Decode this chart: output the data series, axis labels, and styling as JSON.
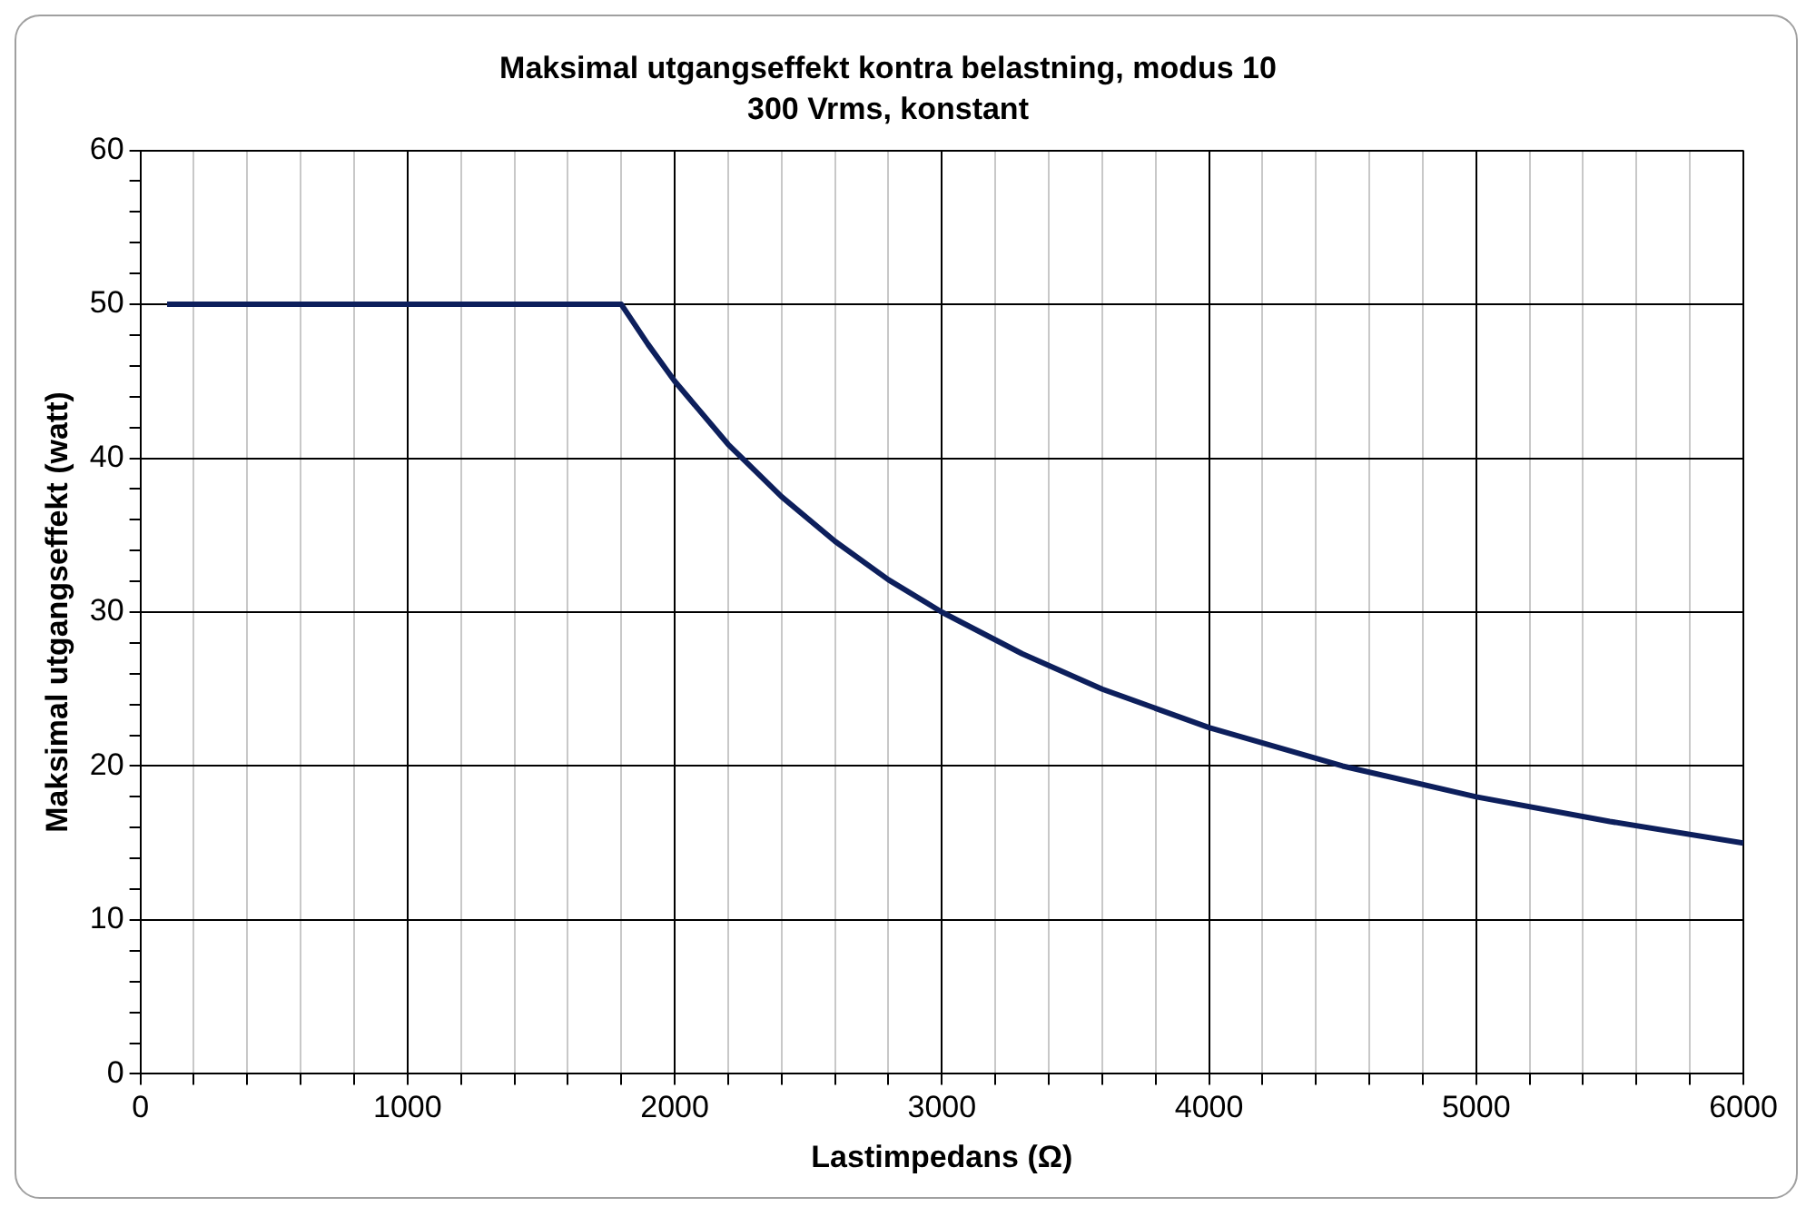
{
  "chart_data": {
    "type": "line",
    "title": "Maksimal utgangseffekt kontra belastning, modus 10",
    "subtitle": "300 Vrms, konstant",
    "xlabel": "Lastimpedans (Ω)",
    "ylabel": "Maksimal utgangseffekt (watt)",
    "x": [
      100,
      1800,
      1900,
      2000,
      2200,
      2400,
      2600,
      2800,
      3000,
      3300,
      3600,
      4000,
      4500,
      5000,
      5500,
      6000
    ],
    "series": [
      {
        "color": "#0d1f5c",
        "values": [
          50,
          50,
          47.4,
          45,
          40.9,
          37.5,
          34.6,
          32.1,
          30,
          27.3,
          25,
          22.5,
          20,
          18,
          16.4,
          15
        ]
      }
    ],
    "xlim": [
      0,
      6000
    ],
    "xticks": [
      0,
      {
        "value": 200,
        "label": null
      },
      {
        "value": 400,
        "label": null
      },
      {
        "value": 600,
        "label": null
      },
      {
        "value": 800,
        "label": null
      },
      1000,
      {
        "value": 1200,
        "label": null
      },
      {
        "value": 1400,
        "label": null
      },
      {
        "value": 1600,
        "label": null
      },
      {
        "value": 1800,
        "label": null
      },
      2000,
      {
        "value": 2200,
        "label": null
      },
      {
        "value": 2400,
        "label": null
      },
      {
        "value": 2600,
        "label": null
      },
      {
        "value": 2800,
        "label": null
      },
      3000,
      {
        "value": 3200,
        "label": null
      },
      {
        "value": 3400,
        "label": null
      },
      {
        "value": 3600,
        "label": null
      },
      {
        "value": 3800,
        "label": null
      },
      4000,
      {
        "value": 4200,
        "label": null
      },
      {
        "value": 4400,
        "label": null
      },
      {
        "value": 4600,
        "label": null
      },
      {
        "value": 4800,
        "label": null
      },
      5000,
      {
        "value": 5200,
        "label": null
      },
      {
        "value": 5400,
        "label": null
      },
      {
        "value": 5600,
        "label": null
      },
      {
        "value": 5800,
        "label": null
      },
      6000
    ],
    "ylim": [
      0,
      60
    ],
    "yticks": [
      0,
      {
        "value": 2,
        "label": null
      },
      {
        "value": 4,
        "label": null
      },
      {
        "value": 6,
        "label": null
      },
      {
        "value": 8,
        "label": null
      },
      10,
      {
        "value": 12,
        "label": null
      },
      {
        "value": 14,
        "label": null
      },
      {
        "value": 16,
        "label": null
      },
      {
        "value": 18,
        "label": null
      },
      20,
      {
        "value": 22,
        "label": null
      },
      {
        "value": 24,
        "label": null
      },
      {
        "value": 26,
        "label": null
      },
      {
        "value": 28,
        "label": null
      },
      30,
      {
        "value": 32,
        "label": null
      },
      {
        "value": 34,
        "label": null
      },
      {
        "value": 36,
        "label": null
      },
      {
        "value": 38,
        "label": null
      },
      40,
      {
        "value": 42,
        "label": null
      },
      {
        "value": 44,
        "label": null
      },
      {
        "value": 46,
        "label": null
      },
      {
        "value": 48,
        "label": null
      },
      50,
      {
        "value": 52,
        "label": null
      },
      {
        "value": 54,
        "label": null
      },
      {
        "value": 56,
        "label": null
      },
      {
        "value": 58,
        "label": null
      },
      60
    ],
    "grid": true,
    "legend": false,
    "marker": "none",
    "line_style": "solid"
  }
}
